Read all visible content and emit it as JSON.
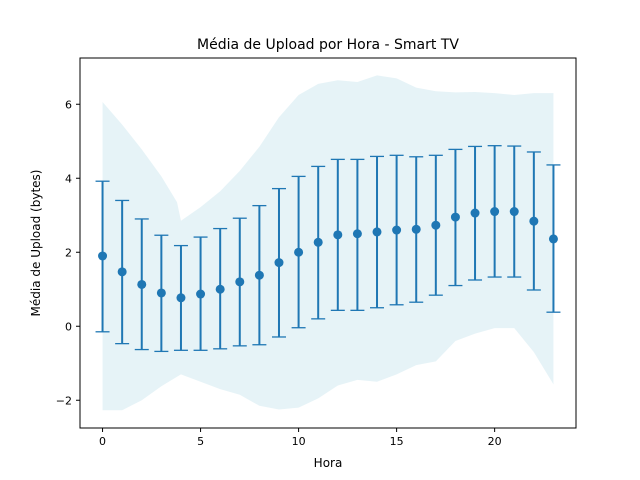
{
  "chart_data": {
    "type": "scatter",
    "title": "Média de Upload por Hora - Smart TV",
    "xlabel": "Hora",
    "ylabel": "Média de Upload (bytes)",
    "xlim": [
      -1.15,
      24.15
    ],
    "ylim": [
      -2.75,
      7.25
    ],
    "xticks": [
      0,
      5,
      10,
      15,
      20
    ],
    "yticks": [
      -2,
      0,
      2,
      4,
      6
    ],
    "x": [
      0,
      1,
      2,
      3,
      4,
      5,
      6,
      7,
      8,
      9,
      10,
      11,
      12,
      13,
      14,
      15,
      16,
      17,
      18,
      19,
      20,
      21,
      22,
      23
    ],
    "mean": [
      1.9,
      1.47,
      1.13,
      0.9,
      0.77,
      0.87,
      1.0,
      1.2,
      1.38,
      1.72,
      2.0,
      2.27,
      2.47,
      2.5,
      2.55,
      2.6,
      2.62,
      2.73,
      2.95,
      3.06,
      3.1,
      3.1,
      2.84,
      2.36
    ],
    "error_upper": [
      3.92,
      3.4,
      2.9,
      2.46,
      2.18,
      2.41,
      2.64,
      2.92,
      3.26,
      3.72,
      4.05,
      4.32,
      4.51,
      4.51,
      4.59,
      4.62,
      4.58,
      4.62,
      4.78,
      4.86,
      4.88,
      4.87,
      4.71,
      4.36
    ],
    "error_lower": [
      -0.15,
      -0.47,
      -0.63,
      -0.68,
      -0.65,
      -0.65,
      -0.61,
      -0.53,
      -0.5,
      -0.29,
      -0.04,
      0.2,
      0.43,
      0.43,
      0.5,
      0.58,
      0.65,
      0.84,
      1.1,
      1.25,
      1.33,
      1.33,
      0.98,
      0.38
    ],
    "band_upper": [
      6.06,
      5.45,
      4.78,
      4.05,
      3.35,
      2.85,
      3.22,
      3.65,
      4.2,
      4.85,
      5.65,
      6.25,
      6.55,
      6.65,
      6.6,
      6.78,
      6.7,
      6.45,
      6.35,
      6.32,
      6.33,
      6.3,
      6.25,
      6.3,
      6.3
    ],
    "band_upper_x": [
      0,
      1,
      2,
      3,
      3.8,
      4,
      5,
      6,
      7,
      8,
      9,
      10,
      11,
      12,
      13,
      14,
      15,
      16,
      17,
      18,
      19,
      20,
      21,
      22,
      23
    ],
    "band_lower": [
      -2.27,
      -2.27,
      -2.0,
      -1.62,
      -1.3,
      -1.5,
      -1.7,
      -1.85,
      -2.15,
      -2.25,
      -2.2,
      -1.95,
      -1.6,
      -1.45,
      -1.5,
      -1.3,
      -1.05,
      -0.95,
      -0.4,
      -0.2,
      -0.05,
      -0.05,
      -0.7,
      -1.57
    ],
    "colors": {
      "points": "#1f77b4",
      "band": "#add8e6",
      "band_opacity": "0.3",
      "axis": "#000000"
    }
  }
}
